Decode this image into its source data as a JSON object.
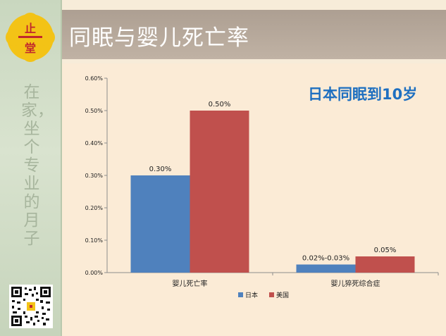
{
  "slide": {
    "title": "同眠与婴儿死亡率",
    "highlight_text": "日本同眠到10岁",
    "side_text": "在家，坐个专业的月子",
    "logo_text": "止一堂"
  },
  "colors": {
    "japan": "#4f81bd",
    "usa": "#c0504d",
    "highlight": "#1e6fc0"
  },
  "chart_data": {
    "type": "bar",
    "categories": [
      "婴儿死亡率",
      "婴儿猝死综合症"
    ],
    "series": [
      {
        "name": "日本",
        "values": [
          0.3,
          0.025
        ],
        "labels": [
          "0.30%",
          "0.02%-0.03%"
        ],
        "color": "#4f81bd"
      },
      {
        "name": "美国",
        "values": [
          0.5,
          0.05
        ],
        "labels": [
          "0.50%",
          "0.05%"
        ],
        "color": "#c0504d"
      }
    ],
    "yticks": [
      "0.00%",
      "0.10%",
      "0.20%",
      "0.30%",
      "0.40%",
      "0.50%",
      "0.60%"
    ],
    "ylim": [
      0,
      0.6
    ],
    "legend": "bottom",
    "grid": false
  }
}
